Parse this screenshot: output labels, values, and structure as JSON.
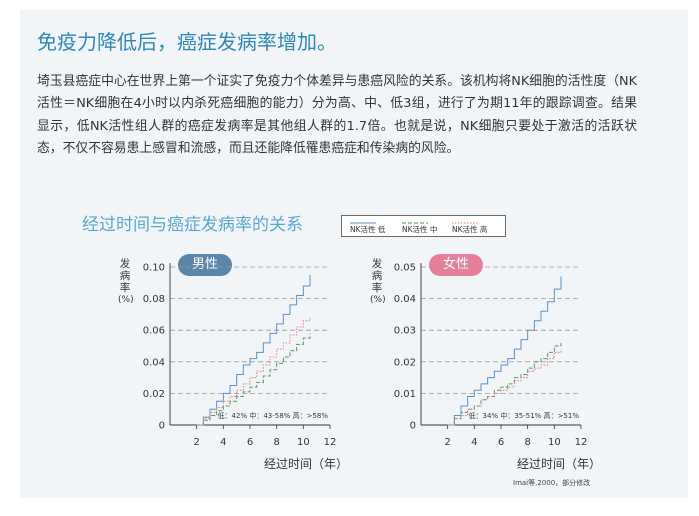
{
  "heading": "免疫力降低后，癌症发病率增加。",
  "paragraph": "埼玉县癌症中心在世界上第一个证实了免疫力个体差异与患癌风险的关系。该机构将NK细胞的活性度（NK活性＝NK细胞在4小时以内杀死癌细胞的能力）分为高、中、低3组，进行了为期11年的跟踪调查。结果显示，低NK活性组人群的癌症发病率是其他组人群的1.7倍。也就是说，NK细胞只要处于激活的活跃状态，不仅不容易患上感冒和流感，而且还能降低罹患癌症和传染病的风险。",
  "section_title": "经过时间与癌症发病率的关系",
  "legend": {
    "items": [
      {
        "label": "NK活性 低",
        "style": "solid",
        "color": "#5b8fc4"
      },
      {
        "label": "NK活性 中",
        "style": "dashed",
        "color": "#4f9a5a"
      },
      {
        "label": "NK活性 高",
        "style": "dotted",
        "color": "#e07a8a"
      }
    ]
  },
  "source": "Imai等,2000，部分修改",
  "colors": {
    "accent": "#2f87b6",
    "male_badge": "#5a86aa",
    "female_badge": "#e57f9a"
  },
  "chart_data": [
    {
      "type": "line",
      "badge": "男性",
      "ylabel": "发病率（%）",
      "xlabel": "经过时间（年）",
      "xlim": [
        0,
        12
      ],
      "ylim": [
        0,
        0.1
      ],
      "xticks": [
        "2",
        "4",
        "6",
        "8",
        "10",
        "12"
      ],
      "yticks": [
        "0",
        "0.02",
        "0.04",
        "0.06",
        "0.08",
        "0.10"
      ],
      "annotation": "低：42%  中：43-58%  高：>58%",
      "grid": true,
      "series": [
        {
          "name": "NK活性 低",
          "x": [
            2,
            2.5,
            3,
            3.5,
            4,
            4.5,
            5,
            5.5,
            6,
            6.5,
            7,
            7.5,
            8,
            8.5,
            9,
            9.5,
            10,
            10.5
          ],
          "y": [
            0,
            0.005,
            0.01,
            0.015,
            0.02,
            0.025,
            0.032,
            0.038,
            0.042,
            0.046,
            0.052,
            0.058,
            0.064,
            0.07,
            0.076,
            0.082,
            0.088,
            0.095
          ]
        },
        {
          "name": "NK活性 中",
          "x": [
            2,
            2.5,
            3,
            3.5,
            4,
            4.5,
            5,
            5.5,
            6,
            6.5,
            7,
            7.5,
            8,
            8.5,
            9,
            9.5,
            10,
            10.5
          ],
          "y": [
            0,
            0.003,
            0.006,
            0.009,
            0.012,
            0.015,
            0.018,
            0.021,
            0.024,
            0.027,
            0.031,
            0.035,
            0.039,
            0.043,
            0.047,
            0.051,
            0.055,
            0.058
          ]
        },
        {
          "name": "NK活性 高",
          "x": [
            2,
            2.5,
            3,
            3.5,
            4,
            4.5,
            5,
            5.5,
            6,
            6.5,
            7,
            7.5,
            8,
            8.5,
            9,
            9.5,
            10,
            10.5
          ],
          "y": [
            0,
            0.004,
            0.008,
            0.011,
            0.015,
            0.018,
            0.022,
            0.026,
            0.03,
            0.034,
            0.038,
            0.043,
            0.048,
            0.052,
            0.057,
            0.062,
            0.066,
            0.068
          ]
        }
      ]
    },
    {
      "type": "line",
      "badge": "女性",
      "ylabel": "发病率（%）",
      "xlabel": "经过时间（年）",
      "xlim": [
        0,
        12
      ],
      "ylim": [
        0,
        0.05
      ],
      "xticks": [
        "2",
        "4",
        "6",
        "8",
        "10",
        "12"
      ],
      "yticks": [
        "0",
        "0.01",
        "0.02",
        "0.03",
        "0.04",
        "0.05"
      ],
      "annotation": "低：34%  中：35-51%  高：>51%",
      "grid": true,
      "series": [
        {
          "name": "NK活性 低",
          "x": [
            2,
            2.5,
            3,
            3.5,
            4,
            4.5,
            5,
            5.5,
            6,
            6.5,
            7,
            7.5,
            8,
            8.5,
            9,
            9.5,
            10,
            10.5
          ],
          "y": [
            0,
            0.003,
            0.006,
            0.009,
            0.011,
            0.013,
            0.015,
            0.017,
            0.019,
            0.021,
            0.024,
            0.027,
            0.03,
            0.033,
            0.036,
            0.039,
            0.043,
            0.047
          ]
        },
        {
          "name": "NK活性 中",
          "x": [
            2,
            2.5,
            3,
            3.5,
            4,
            4.5,
            5,
            5.5,
            6,
            6.5,
            7,
            7.5,
            8,
            8.5,
            9,
            9.5,
            10,
            10.5
          ],
          "y": [
            0,
            0.002,
            0.004,
            0.005,
            0.006,
            0.008,
            0.009,
            0.011,
            0.012,
            0.013,
            0.015,
            0.016,
            0.018,
            0.02,
            0.021,
            0.023,
            0.025,
            0.026
          ]
        },
        {
          "name": "NK活性 高",
          "x": [
            2,
            2.5,
            3,
            3.5,
            4,
            4.5,
            5,
            5.5,
            6,
            6.5,
            7,
            7.5,
            8,
            8.5,
            9,
            9.5,
            10,
            10.5
          ],
          "y": [
            0,
            0.002,
            0.003,
            0.005,
            0.006,
            0.008,
            0.009,
            0.01,
            0.011,
            0.012,
            0.014,
            0.015,
            0.017,
            0.018,
            0.019,
            0.021,
            0.023,
            0.024
          ]
        }
      ]
    }
  ]
}
